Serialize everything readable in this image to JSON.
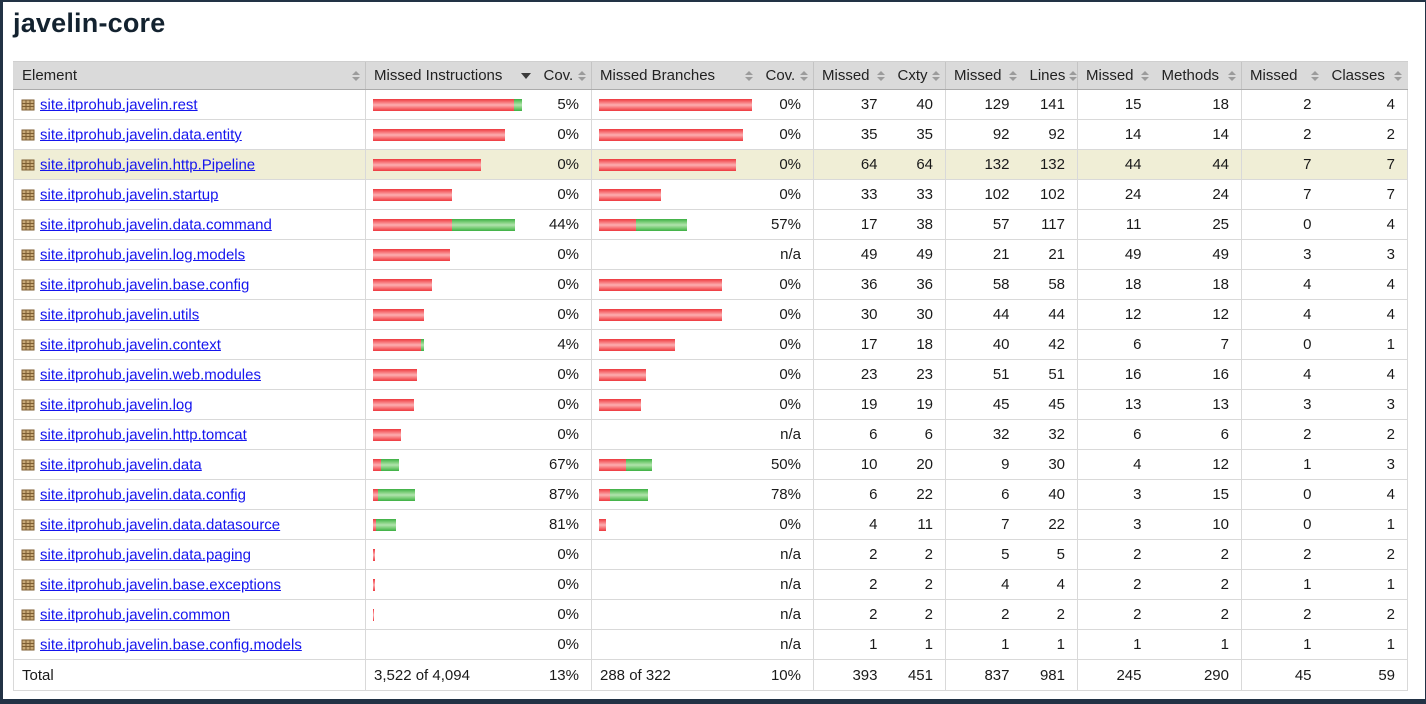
{
  "page": {
    "title": "javelin-core"
  },
  "colors": {
    "link": "#1515ee",
    "header_bg": "#dadada",
    "highlight_row_bg": "#f0eed6",
    "window_edge": "#223245",
    "bar_red_edge": "#ed383e",
    "bar_red_mid": "#fcaeb1",
    "bar_green_edge": "#3caf43",
    "bar_green_mid": "#b2e3ad"
  },
  "icons": {
    "package": "package-grid-icon",
    "sort_inactive": "sort-up-down-icon",
    "sort_active": "sort-desc-icon"
  },
  "table": {
    "columns": [
      {
        "label": "Element",
        "sort": "both"
      },
      {
        "label": "Missed Instructions",
        "sort": "desc"
      },
      {
        "label": "Cov.",
        "sort": "both"
      },
      {
        "label": "Missed Branches",
        "sort": "both"
      },
      {
        "label": "Cov.",
        "sort": "both"
      },
      {
        "label": "Missed",
        "sort": "both"
      },
      {
        "label": "Cxty",
        "sort": "both"
      },
      {
        "label": "Missed",
        "sort": "both"
      },
      {
        "label": "Lines",
        "sort": "both"
      },
      {
        "label": "Missed",
        "sort": "both"
      },
      {
        "label": "Methods",
        "sort": "both"
      },
      {
        "label": "Missed",
        "sort": "both"
      },
      {
        "label": "Classes",
        "sort": "both"
      }
    ],
    "rows": [
      {
        "element": "site.itprohub.javelin.rest",
        "highlighted": false,
        "instr_red": 141,
        "instr_green": 8,
        "instr_cov": "5%",
        "branch_red": 153,
        "branch_green": 0,
        "branch_cov": "0%",
        "cells": [
          "37",
          "40",
          "129",
          "141",
          "15",
          "18",
          "2",
          "4"
        ]
      },
      {
        "element": "site.itprohub.javelin.data.entity",
        "highlighted": false,
        "instr_red": 132,
        "instr_green": 0,
        "instr_cov": "0%",
        "branch_red": 144,
        "branch_green": 0,
        "branch_cov": "0%",
        "cells": [
          "35",
          "35",
          "92",
          "92",
          "14",
          "14",
          "2",
          "2"
        ]
      },
      {
        "element": "site.itprohub.javelin.http.Pipeline",
        "highlighted": true,
        "instr_red": 108,
        "instr_green": 0,
        "instr_cov": "0%",
        "branch_red": 137,
        "branch_green": 0,
        "branch_cov": "0%",
        "cells": [
          "64",
          "64",
          "132",
          "132",
          "44",
          "44",
          "7",
          "7"
        ]
      },
      {
        "element": "site.itprohub.javelin.startup",
        "highlighted": false,
        "instr_red": 79,
        "instr_green": 0,
        "instr_cov": "0%",
        "branch_red": 62,
        "branch_green": 0,
        "branch_cov": "0%",
        "cells": [
          "33",
          "33",
          "102",
          "102",
          "24",
          "24",
          "7",
          "7"
        ]
      },
      {
        "element": "site.itprohub.javelin.data.command",
        "highlighted": false,
        "instr_red": 79,
        "instr_green": 63,
        "instr_cov": "44%",
        "branch_red": 37,
        "branch_green": 51,
        "branch_cov": "57%",
        "cells": [
          "17",
          "38",
          "57",
          "117",
          "11",
          "25",
          "0",
          "4"
        ]
      },
      {
        "element": "site.itprohub.javelin.log.models",
        "highlighted": false,
        "instr_red": 77,
        "instr_green": 0,
        "instr_cov": "0%",
        "branch_red": 0,
        "branch_green": 0,
        "branch_cov": "n/a",
        "cells": [
          "49",
          "49",
          "21",
          "21",
          "49",
          "49",
          "3",
          "3"
        ]
      },
      {
        "element": "site.itprohub.javelin.base.config",
        "highlighted": false,
        "instr_red": 59,
        "instr_green": 0,
        "instr_cov": "0%",
        "branch_red": 123,
        "branch_green": 0,
        "branch_cov": "0%",
        "cells": [
          "36",
          "36",
          "58",
          "58",
          "18",
          "18",
          "4",
          "4"
        ]
      },
      {
        "element": "site.itprohub.javelin.utils",
        "highlighted": false,
        "instr_red": 51,
        "instr_green": 0,
        "instr_cov": "0%",
        "branch_red": 123,
        "branch_green": 0,
        "branch_cov": "0%",
        "cells": [
          "30",
          "30",
          "44",
          "44",
          "12",
          "12",
          "4",
          "4"
        ]
      },
      {
        "element": "site.itprohub.javelin.context",
        "highlighted": false,
        "instr_red": 48,
        "instr_green": 3,
        "instr_cov": "4%",
        "branch_red": 76,
        "branch_green": 0,
        "branch_cov": "0%",
        "cells": [
          "17",
          "18",
          "40",
          "42",
          "6",
          "7",
          "0",
          "1"
        ]
      },
      {
        "element": "site.itprohub.javelin.web.modules",
        "highlighted": false,
        "instr_red": 44,
        "instr_green": 0,
        "instr_cov": "0%",
        "branch_red": 47,
        "branch_green": 0,
        "branch_cov": "0%",
        "cells": [
          "23",
          "23",
          "51",
          "51",
          "16",
          "16",
          "4",
          "4"
        ]
      },
      {
        "element": "site.itprohub.javelin.log",
        "highlighted": false,
        "instr_red": 41,
        "instr_green": 0,
        "instr_cov": "0%",
        "branch_red": 42,
        "branch_green": 0,
        "branch_cov": "0%",
        "cells": [
          "19",
          "19",
          "45",
          "45",
          "13",
          "13",
          "3",
          "3"
        ]
      },
      {
        "element": "site.itprohub.javelin.http.tomcat",
        "highlighted": false,
        "instr_red": 28,
        "instr_green": 0,
        "instr_cov": "0%",
        "branch_red": 0,
        "branch_green": 0,
        "branch_cov": "n/a",
        "cells": [
          "6",
          "6",
          "32",
          "32",
          "6",
          "6",
          "2",
          "2"
        ]
      },
      {
        "element": "site.itprohub.javelin.data",
        "highlighted": false,
        "instr_red": 8,
        "instr_green": 18,
        "instr_cov": "67%",
        "branch_red": 27,
        "branch_green": 26,
        "branch_cov": "50%",
        "cells": [
          "10",
          "20",
          "9",
          "30",
          "4",
          "12",
          "1",
          "3"
        ]
      },
      {
        "element": "site.itprohub.javelin.data.config",
        "highlighted": false,
        "instr_red": 5,
        "instr_green": 37,
        "instr_cov": "87%",
        "branch_red": 11,
        "branch_green": 38,
        "branch_cov": "78%",
        "cells": [
          "6",
          "22",
          "6",
          "40",
          "3",
          "15",
          "0",
          "4"
        ]
      },
      {
        "element": "site.itprohub.javelin.data.datasource",
        "highlighted": false,
        "instr_red": 3,
        "instr_green": 20,
        "instr_cov": "81%",
        "branch_red": 7,
        "branch_green": 0,
        "branch_cov": "0%",
        "cells": [
          "4",
          "11",
          "7",
          "22",
          "3",
          "10",
          "0",
          "1"
        ]
      },
      {
        "element": "site.itprohub.javelin.data.paging",
        "highlighted": false,
        "instr_red": 2,
        "instr_green": 0,
        "instr_cov": "0%",
        "branch_red": 0,
        "branch_green": 0,
        "branch_cov": "n/a",
        "cells": [
          "2",
          "2",
          "5",
          "5",
          "2",
          "2",
          "2",
          "2"
        ]
      },
      {
        "element": "site.itprohub.javelin.base.exceptions",
        "highlighted": false,
        "instr_red": 2,
        "instr_green": 0,
        "instr_cov": "0%",
        "branch_red": 0,
        "branch_green": 0,
        "branch_cov": "n/a",
        "cells": [
          "2",
          "2",
          "4",
          "4",
          "2",
          "2",
          "1",
          "1"
        ]
      },
      {
        "element": "site.itprohub.javelin.common",
        "highlighted": false,
        "instr_red": 1,
        "instr_green": 0,
        "instr_cov": "0%",
        "branch_red": 0,
        "branch_green": 0,
        "branch_cov": "n/a",
        "cells": [
          "2",
          "2",
          "2",
          "2",
          "2",
          "2",
          "2",
          "2"
        ]
      },
      {
        "element": "site.itprohub.javelin.base.config.models",
        "highlighted": false,
        "instr_red": 0,
        "instr_green": 0,
        "instr_cov": "0%",
        "branch_red": 0,
        "branch_green": 0,
        "branch_cov": "n/a",
        "cells": [
          "1",
          "1",
          "1",
          "1",
          "1",
          "1",
          "1",
          "1"
        ]
      }
    ],
    "total": {
      "label": "Total",
      "instr_text": "3,522 of 4,094",
      "instr_cov": "13%",
      "branch_text": "288 of 322",
      "branch_cov": "10%",
      "cells": [
        "393",
        "451",
        "837",
        "981",
        "245",
        "290",
        "45",
        "59"
      ]
    }
  }
}
